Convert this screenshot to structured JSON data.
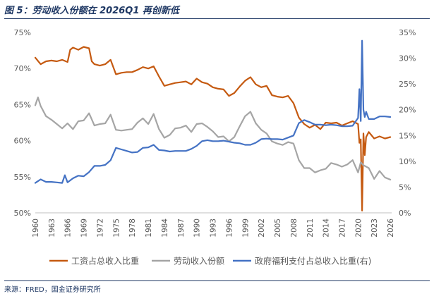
{
  "figure": {
    "title": "图 5：劳动收入份额在 2026Q1 再创新低",
    "source": "来源：FRED，国金证券研究所"
  },
  "chart_data": {
    "type": "line",
    "x_ticks": [
      "1960",
      "1963",
      "1966",
      "1969",
      "1972",
      "1975",
      "1978",
      "1981",
      "1984",
      "1987",
      "1990",
      "1993",
      "1996",
      "1999",
      "2002",
      "2005",
      "2008",
      "2011",
      "2014",
      "2017",
      "2020",
      "2023",
      "2026"
    ],
    "y_left": {
      "ticks": [
        "50%",
        "55%",
        "60%",
        "65%",
        "70%",
        "75%"
      ],
      "lim": [
        50,
        75
      ]
    },
    "y_right": {
      "ticks": [
        "0%",
        "5%",
        "10%",
        "15%",
        "20%",
        "25%",
        "30%",
        "35%"
      ],
      "lim": [
        0,
        35
      ]
    },
    "xlim": [
      1960,
      2026.25
    ],
    "grid": false,
    "legend_position": "bottom",
    "series": [
      {
        "name": "工资占总收入比重",
        "axis": "left",
        "color": "#c55a11",
        "points": [
          [
            1960,
            71.5
          ],
          [
            1961,
            70.6
          ],
          [
            1962,
            71.0
          ],
          [
            1963,
            71.1
          ],
          [
            1964,
            71.0
          ],
          [
            1965,
            71.2
          ],
          [
            1966,
            70.9
          ],
          [
            1966.5,
            72.6
          ],
          [
            1967,
            72.9
          ],
          [
            1968,
            72.6
          ],
          [
            1969,
            73.0
          ],
          [
            1970,
            72.8
          ],
          [
            1970.5,
            71.0
          ],
          [
            1971,
            70.6
          ],
          [
            1972,
            70.4
          ],
          [
            1973,
            70.6
          ],
          [
            1974,
            71.2
          ],
          [
            1975,
            69.2
          ],
          [
            1976,
            69.4
          ],
          [
            1977,
            69.5
          ],
          [
            1978,
            69.5
          ],
          [
            1979,
            69.8
          ],
          [
            1980,
            70.2
          ],
          [
            1981,
            70.0
          ],
          [
            1982,
            70.3
          ],
          [
            1983,
            68.9
          ],
          [
            1984,
            67.6
          ],
          [
            1985,
            67.8
          ],
          [
            1986,
            68.0
          ],
          [
            1987,
            68.1
          ],
          [
            1988,
            68.2
          ],
          [
            1989,
            67.8
          ],
          [
            1990,
            68.6
          ],
          [
            1991,
            68.1
          ],
          [
            1992,
            67.9
          ],
          [
            1993,
            67.4
          ],
          [
            1994,
            67.2
          ],
          [
            1995,
            67.1
          ],
          [
            1996,
            66.2
          ],
          [
            1997,
            66.6
          ],
          [
            1998,
            67.5
          ],
          [
            1999,
            68.3
          ],
          [
            2000,
            68.8
          ],
          [
            2001,
            67.8
          ],
          [
            2002,
            67.4
          ],
          [
            2003,
            67.6
          ],
          [
            2004,
            66.3
          ],
          [
            2005,
            66.1
          ],
          [
            2006,
            66.0
          ],
          [
            2007,
            66.2
          ],
          [
            2008,
            65.2
          ],
          [
            2009,
            63.2
          ],
          [
            2010,
            62.3
          ],
          [
            2011,
            61.8
          ],
          [
            2012,
            62.2
          ],
          [
            2013,
            61.6
          ],
          [
            2014,
            62.5
          ],
          [
            2015,
            62.4
          ],
          [
            2016,
            62.5
          ],
          [
            2017,
            62.1
          ],
          [
            2018,
            62.4
          ],
          [
            2019,
            62.7
          ],
          [
            2020,
            62.3
          ],
          [
            2020.25,
            59.7
          ],
          [
            2020.5,
            60.2
          ],
          [
            2020.75,
            50.3
          ],
          [
            2021,
            61.0
          ],
          [
            2021.25,
            58.0
          ],
          [
            2021.5,
            60.5
          ],
          [
            2022,
            61.2
          ],
          [
            2023,
            60.3
          ],
          [
            2024,
            60.6
          ],
          [
            2025,
            60.3
          ],
          [
            2026,
            60.5
          ]
        ]
      },
      {
        "name": "劳动收入份额",
        "axis": "left",
        "color": "#a5a5a5",
        "points": [
          [
            1960,
            64.9
          ],
          [
            1960.5,
            66.0
          ],
          [
            1961,
            64.8
          ],
          [
            1962,
            63.4
          ],
          [
            1963,
            62.9
          ],
          [
            1964,
            62.3
          ],
          [
            1965,
            61.7
          ],
          [
            1966,
            62.4
          ],
          [
            1967,
            61.6
          ],
          [
            1968,
            62.7
          ],
          [
            1969,
            62.8
          ],
          [
            1970,
            63.8
          ],
          [
            1971,
            62.1
          ],
          [
            1972,
            62.3
          ],
          [
            1973,
            62.4
          ],
          [
            1974,
            63.6
          ],
          [
            1975,
            61.5
          ],
          [
            1976,
            61.4
          ],
          [
            1977,
            61.5
          ],
          [
            1978,
            61.6
          ],
          [
            1979,
            62.5
          ],
          [
            1980,
            63.1
          ],
          [
            1981,
            62.3
          ],
          [
            1982,
            63.7
          ],
          [
            1983,
            61.6
          ],
          [
            1984,
            60.4
          ],
          [
            1985,
            60.8
          ],
          [
            1986,
            61.7
          ],
          [
            1987,
            61.8
          ],
          [
            1988,
            62.1
          ],
          [
            1989,
            61.2
          ],
          [
            1990,
            62.3
          ],
          [
            1991,
            62.4
          ],
          [
            1992,
            61.9
          ],
          [
            1993,
            61.3
          ],
          [
            1994,
            60.5
          ],
          [
            1995,
            60.6
          ],
          [
            1996,
            59.9
          ],
          [
            1997,
            60.5
          ],
          [
            1998,
            62.0
          ],
          [
            1999,
            63.4
          ],
          [
            2000,
            64.0
          ],
          [
            2001,
            62.4
          ],
          [
            2002,
            61.5
          ],
          [
            2003,
            61.0
          ],
          [
            2004,
            59.9
          ],
          [
            2005,
            59.6
          ],
          [
            2006,
            59.4
          ],
          [
            2007,
            59.8
          ],
          [
            2008,
            59.6
          ],
          [
            2009,
            57.3
          ],
          [
            2010,
            56.2
          ],
          [
            2011,
            56.2
          ],
          [
            2012,
            55.6
          ],
          [
            2013,
            55.9
          ],
          [
            2014,
            56.1
          ],
          [
            2015,
            56.9
          ],
          [
            2016,
            56.7
          ],
          [
            2017,
            56.4
          ],
          [
            2018,
            56.7
          ],
          [
            2019,
            57.3
          ],
          [
            2020,
            55.6
          ],
          [
            2020.5,
            57.0
          ],
          [
            2021,
            56.6
          ],
          [
            2022,
            56.2
          ],
          [
            2023,
            54.7
          ],
          [
            2024,
            55.8
          ],
          [
            2025,
            54.9
          ],
          [
            2026,
            54.6
          ]
        ]
      },
      {
        "name": "政府福利支付占总收入比重(右)",
        "axis": "right",
        "color": "#4472c4",
        "points": [
          [
            1960,
            5.8
          ],
          [
            1961,
            6.5
          ],
          [
            1962,
            6.0
          ],
          [
            1963,
            6.0
          ],
          [
            1964,
            5.9
          ],
          [
            1965,
            5.8
          ],
          [
            1965.5,
            7.3
          ],
          [
            1966,
            5.9
          ],
          [
            1967,
            6.7
          ],
          [
            1968,
            7.2
          ],
          [
            1969,
            7.1
          ],
          [
            1970,
            7.9
          ],
          [
            1971,
            9.1
          ],
          [
            1972,
            9.1
          ],
          [
            1973,
            9.3
          ],
          [
            1974,
            10.2
          ],
          [
            1975,
            12.6
          ],
          [
            1976,
            12.3
          ],
          [
            1977,
            12.0
          ],
          [
            1978,
            11.7
          ],
          [
            1979,
            11.8
          ],
          [
            1980,
            12.6
          ],
          [
            1981,
            12.7
          ],
          [
            1982,
            13.2
          ],
          [
            1983,
            12.2
          ],
          [
            1984,
            12.1
          ],
          [
            1985,
            11.9
          ],
          [
            1986,
            12.0
          ],
          [
            1987,
            12.0
          ],
          [
            1988,
            12.0
          ],
          [
            1989,
            12.4
          ],
          [
            1990,
            13.0
          ],
          [
            1991,
            13.9
          ],
          [
            1992,
            14.1
          ],
          [
            1993,
            13.9
          ],
          [
            1994,
            13.9
          ],
          [
            1995,
            14.0
          ],
          [
            1996,
            13.8
          ],
          [
            1997,
            13.6
          ],
          [
            1998,
            13.5
          ],
          [
            1999,
            13.2
          ],
          [
            2000,
            13.2
          ],
          [
            2001,
            13.6
          ],
          [
            2002,
            14.3
          ],
          [
            2003,
            14.4
          ],
          [
            2004,
            14.3
          ],
          [
            2005,
            14.3
          ],
          [
            2006,
            14.2
          ],
          [
            2007,
            14.6
          ],
          [
            2008,
            15.0
          ],
          [
            2009,
            17.4
          ],
          [
            2010,
            18.0
          ],
          [
            2011,
            17.6
          ],
          [
            2012,
            17.1
          ],
          [
            2013,
            17.1
          ],
          [
            2014,
            17.0
          ],
          [
            2015,
            17.1
          ],
          [
            2016,
            17.0
          ],
          [
            2017,
            16.8
          ],
          [
            2018,
            16.8
          ],
          [
            2019,
            16.9
          ],
          [
            2020,
            18.4
          ],
          [
            2020.25,
            24.0
          ],
          [
            2020.5,
            17.8
          ],
          [
            2020.75,
            33.4
          ],
          [
            2021,
            20.0
          ],
          [
            2021.25,
            18.6
          ],
          [
            2021.5,
            19.6
          ],
          [
            2022,
            18.2
          ],
          [
            2023,
            18.2
          ],
          [
            2024,
            18.7
          ],
          [
            2025,
            18.7
          ],
          [
            2026,
            18.6
          ]
        ]
      }
    ]
  }
}
